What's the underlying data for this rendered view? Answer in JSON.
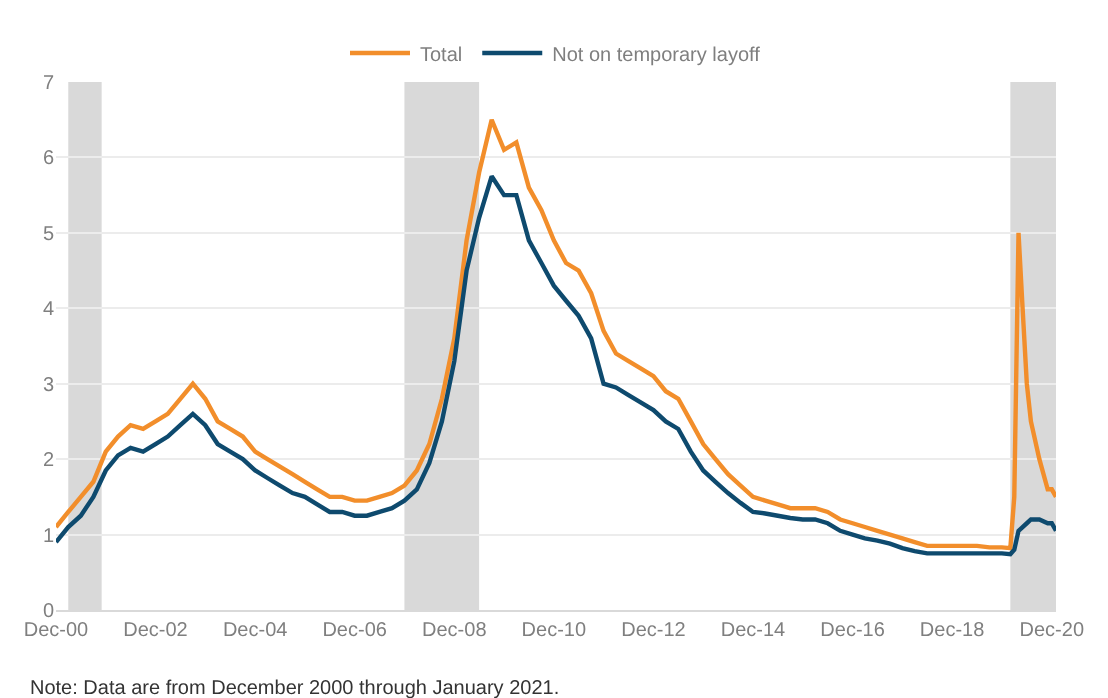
{
  "chart_data": {
    "type": "line",
    "x": [
      "2000-12",
      "2001-03",
      "2001-06",
      "2001-09",
      "2001-12",
      "2002-03",
      "2002-06",
      "2002-09",
      "2002-12",
      "2003-03",
      "2003-06",
      "2003-09",
      "2003-12",
      "2004-03",
      "2004-06",
      "2004-09",
      "2004-12",
      "2005-03",
      "2005-06",
      "2005-09",
      "2005-12",
      "2006-03",
      "2006-06",
      "2006-09",
      "2006-12",
      "2007-03",
      "2007-06",
      "2007-09",
      "2007-12",
      "2008-03",
      "2008-06",
      "2008-09",
      "2008-12",
      "2009-03",
      "2009-06",
      "2009-09",
      "2009-12",
      "2010-03",
      "2010-06",
      "2010-09",
      "2010-12",
      "2011-03",
      "2011-06",
      "2011-09",
      "2011-12",
      "2012-03",
      "2012-06",
      "2012-09",
      "2012-12",
      "2013-03",
      "2013-06",
      "2013-09",
      "2013-12",
      "2014-03",
      "2014-06",
      "2014-09",
      "2014-12",
      "2015-03",
      "2015-06",
      "2015-09",
      "2015-12",
      "2016-03",
      "2016-06",
      "2016-09",
      "2016-12",
      "2017-03",
      "2017-06",
      "2017-09",
      "2017-12",
      "2018-03",
      "2018-06",
      "2018-09",
      "2018-12",
      "2019-03",
      "2019-06",
      "2019-09",
      "2019-12",
      "2020-02",
      "2020-03",
      "2020-04",
      "2020-05",
      "2020-06",
      "2020-07",
      "2020-09",
      "2020-11",
      "2020-12",
      "2021-01"
    ],
    "series": [
      {
        "name": "Total",
        "color": "#f28e2b",
        "values": [
          1.1,
          1.3,
          1.5,
          1.7,
          2.1,
          2.3,
          2.45,
          2.4,
          2.5,
          2.6,
          2.8,
          3.0,
          2.8,
          2.5,
          2.4,
          2.3,
          2.1,
          2.0,
          1.9,
          1.8,
          1.7,
          1.6,
          1.5,
          1.5,
          1.45,
          1.45,
          1.5,
          1.55,
          1.65,
          1.85,
          2.2,
          2.8,
          3.6,
          4.9,
          5.8,
          6.5,
          6.1,
          6.2,
          5.6,
          5.3,
          4.9,
          4.6,
          4.5,
          4.2,
          3.7,
          3.4,
          3.3,
          3.2,
          3.1,
          2.9,
          2.8,
          2.5,
          2.2,
          2.0,
          1.8,
          1.65,
          1.5,
          1.45,
          1.4,
          1.35,
          1.35,
          1.35,
          1.3,
          1.2,
          1.15,
          1.1,
          1.05,
          1.0,
          0.95,
          0.9,
          0.85,
          0.85,
          0.85,
          0.85,
          0.85,
          0.83,
          0.83,
          0.82,
          1.5,
          5.0,
          4.0,
          3.0,
          2.5,
          2.0,
          1.6,
          1.6,
          1.5
        ]
      },
      {
        "name": "Not on temporary layoff",
        "color": "#0e4a6e",
        "values": [
          0.9,
          1.1,
          1.25,
          1.5,
          1.85,
          2.05,
          2.15,
          2.1,
          2.2,
          2.3,
          2.45,
          2.6,
          2.45,
          2.2,
          2.1,
          2.0,
          1.85,
          1.75,
          1.65,
          1.55,
          1.5,
          1.4,
          1.3,
          1.3,
          1.25,
          1.25,
          1.3,
          1.35,
          1.45,
          1.6,
          1.95,
          2.5,
          3.3,
          4.5,
          5.2,
          5.75,
          5.5,
          5.5,
          4.9,
          4.6,
          4.3,
          4.1,
          3.9,
          3.6,
          3.0,
          2.95,
          2.85,
          2.75,
          2.65,
          2.5,
          2.4,
          2.1,
          1.85,
          1.7,
          1.55,
          1.42,
          1.3,
          1.28,
          1.25,
          1.22,
          1.2,
          1.2,
          1.15,
          1.05,
          1.0,
          0.95,
          0.92,
          0.88,
          0.82,
          0.78,
          0.75,
          0.75,
          0.75,
          0.75,
          0.75,
          0.75,
          0.75,
          0.74,
          0.8,
          1.05,
          1.1,
          1.15,
          1.2,
          1.2,
          1.15,
          1.15,
          1.05
        ]
      }
    ],
    "xlim": [
      "2000-12",
      "2021-01"
    ],
    "xticks": [
      {
        "value": "2000-12",
        "label": "Dec-00"
      },
      {
        "value": "2002-12",
        "label": "Dec-02"
      },
      {
        "value": "2004-12",
        "label": "Dec-04"
      },
      {
        "value": "2006-12",
        "label": "Dec-06"
      },
      {
        "value": "2008-12",
        "label": "Dec-08"
      },
      {
        "value": "2010-12",
        "label": "Dec-10"
      },
      {
        "value": "2012-12",
        "label": "Dec-12"
      },
      {
        "value": "2014-12",
        "label": "Dec-14"
      },
      {
        "value": "2016-12",
        "label": "Dec-16"
      },
      {
        "value": "2018-12",
        "label": "Dec-18"
      },
      {
        "value": "2020-12",
        "label": "Dec-20"
      }
    ],
    "ylim": [
      0,
      7
    ],
    "yticks": [
      0,
      1,
      2,
      3,
      4,
      5,
      6,
      7
    ],
    "bands": [
      {
        "axis": "x",
        "from": "2001-03",
        "to": "2001-11",
        "color": "#d9d9d9"
      },
      {
        "axis": "x",
        "from": "2007-12",
        "to": "2009-06",
        "color": "#d9d9d9"
      },
      {
        "axis": "x",
        "from": "2020-02",
        "to": "2021-01",
        "color": "#d9d9d9"
      }
    ],
    "grid": "y",
    "legend": "top",
    "line_style": "solid",
    "marker": "none",
    "annotations": [
      "Note: Data are from December 2000 through January 2021."
    ]
  }
}
